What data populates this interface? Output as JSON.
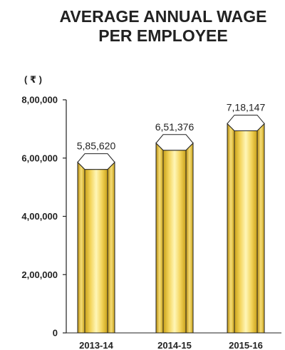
{
  "chart_data": {
    "type": "bar",
    "title_lines": [
      "AVERAGE ANNUAL WAGE",
      "PER EMPLOYEE"
    ],
    "unit": "( ₹ )",
    "categories": [
      "2013-14",
      "2014-15",
      "2015-16"
    ],
    "values": [
      585620,
      651376,
      718147
    ],
    "value_labels": [
      "5,85,620",
      "6,51,376",
      "7,18,147"
    ],
    "ylim": [
      0,
      800000
    ],
    "yticks": [
      0,
      200000,
      400000,
      600000,
      800000
    ],
    "ytick_labels": [
      "0",
      "2,00,000",
      "4,00,000",
      "6,00,000",
      "8,00,000"
    ],
    "grid": false,
    "colors": {
      "gold_dark": "#c9a11a",
      "gold_mid": "#f1cf4a",
      "gold_light": "#fff6b8",
      "outline": "#222222"
    }
  }
}
